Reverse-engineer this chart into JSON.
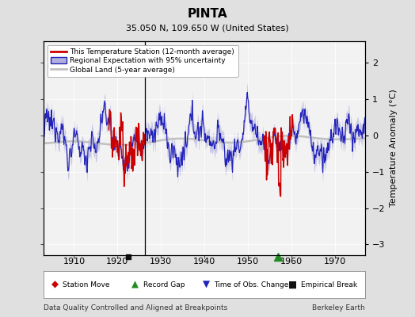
{
  "title": "PINTA",
  "subtitle": "35.050 N, 109.650 W (United States)",
  "xlabel_bottom": "Data Quality Controlled and Aligned at Breakpoints",
  "xlabel_right": "Berkeley Earth",
  "ylabel": "Temperature Anomaly (°C)",
  "xlim": [
    1903,
    1977
  ],
  "ylim": [
    -3.3,
    2.6
  ],
  "yticks": [
    -3,
    -2,
    -1,
    0,
    1,
    2
  ],
  "xticks": [
    1910,
    1920,
    1930,
    1940,
    1950,
    1960,
    1970
  ],
  "bg_color": "#e0e0e0",
  "plot_bg_color": "#f2f2f2",
  "regional_color": "#2222bb",
  "regional_fill_color": "#b0b0dd",
  "station_color": "#cc0000",
  "global_color": "#c0c0c0",
  "marker_station_move_color": "#cc0000",
  "marker_record_gap_color": "#228B22",
  "marker_time_obs_color": "#2222bb",
  "marker_empirical_color": "#111111",
  "empirical_break_x": 1922.5,
  "record_gap_x": 1957.0,
  "seed": 12345,
  "station_seg1_start": 1918.0,
  "station_seg1_end": 1926.5,
  "station_seg2_start": 1953.5,
  "station_seg2_end": 1960.5
}
